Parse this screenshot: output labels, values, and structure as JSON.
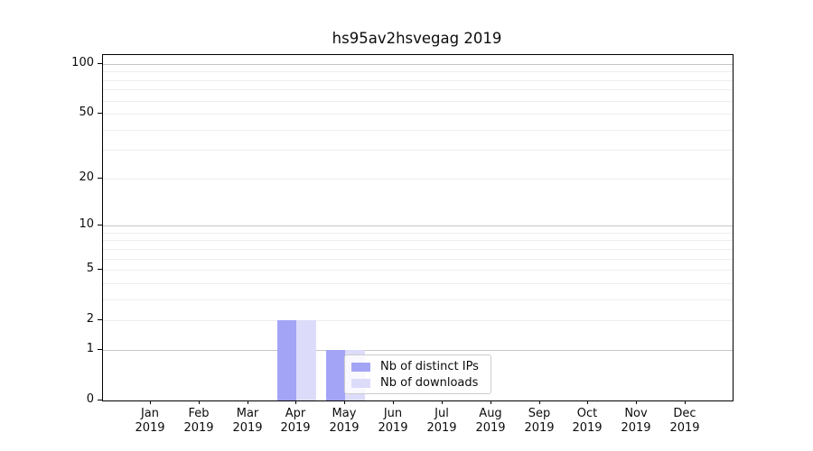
{
  "title": "hs95av2hsvegag 2019",
  "colors": {
    "ips": "#a4a4f6",
    "downloads": "#dcdcfa",
    "grid_major": "#c6c6c6",
    "grid_minor": "#ededed",
    "axis": "#000000",
    "legend_border": "#cccccc"
  },
  "legend": {
    "items": [
      {
        "label": "Nb of distinct IPs",
        "color_key": "ips"
      },
      {
        "label": "Nb of downloads",
        "color_key": "downloads"
      }
    ]
  },
  "chart_data": {
    "type": "bar",
    "title": "hs95av2hsvegag 2019",
    "categories": [
      "Jan",
      "Feb",
      "Mar",
      "Apr",
      "May",
      "Jun",
      "Jul",
      "Aug",
      "Sep",
      "Oct",
      "Nov",
      "Dec"
    ],
    "x_year_label": "2019",
    "series": [
      {
        "name": "Nb of distinct IPs",
        "color_key": "ips",
        "values": [
          0,
          0,
          0,
          2,
          1,
          0,
          0,
          0,
          0,
          0,
          0,
          0
        ]
      },
      {
        "name": "Nb of downloads",
        "color_key": "downloads",
        "values": [
          0,
          0,
          0,
          2,
          1,
          0,
          0,
          0,
          0,
          0,
          0,
          0
        ]
      }
    ],
    "y_scale": "log1p",
    "ylim": [
      0,
      113
    ],
    "y_ticks": [
      0,
      1,
      2,
      5,
      10,
      20,
      50,
      100
    ],
    "y_gridlines_major": [
      1,
      10,
      100
    ],
    "y_gridlines_minor": [
      2,
      3,
      4,
      5,
      6,
      7,
      8,
      9,
      20,
      30,
      40,
      50,
      60,
      70,
      80,
      90
    ],
    "grid": "horizontal",
    "legend_position": "lower-center",
    "xlabel": "",
    "ylabel": ""
  }
}
